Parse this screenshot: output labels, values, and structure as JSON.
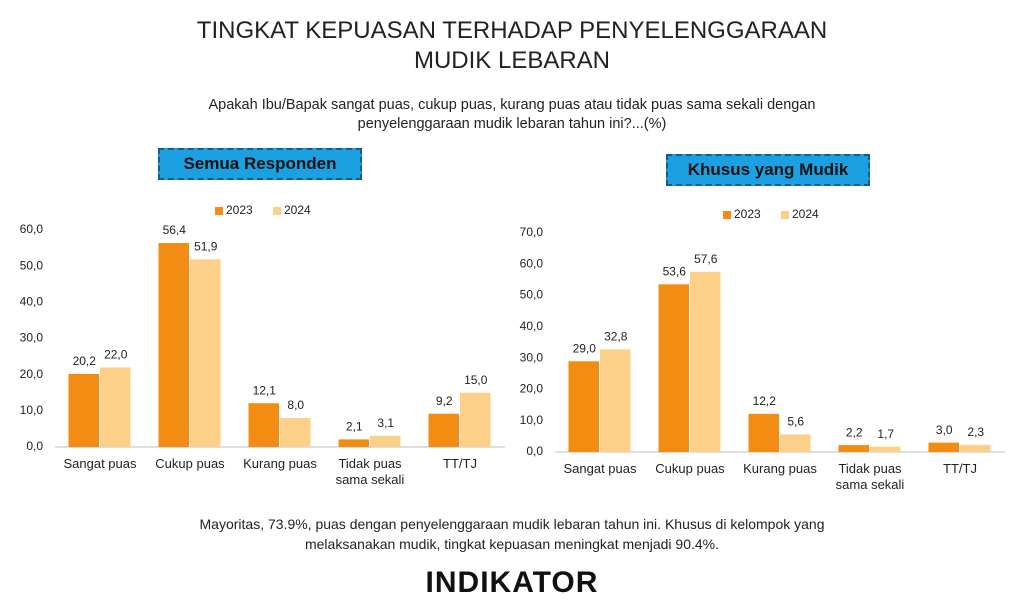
{
  "header": {
    "title": "TINGKAT KEPUASAN TERHADAP PENYELENGGARAAN MUDIK LEBARAN",
    "subtitle": "Apakah Ibu/Bapak sangat puas, cukup puas, kurang puas atau tidak puas sama sekali dengan penyelenggaraan mudik lebaran tahun ini?...(%)"
  },
  "chart_data": [
    {
      "type": "bar",
      "title": "Semua Responden",
      "categories": [
        "Sangat puas",
        "Cukup puas",
        "Kurang puas",
        "Tidak puas sama sekali",
        "TT/TJ"
      ],
      "series": [
        {
          "name": "2023",
          "color": "#f28c12",
          "values": [
            20.2,
            56.4,
            12.1,
            2.1,
            9.2
          ],
          "value_labels": [
            "20,2",
            "56,4",
            "12,1",
            "2,1",
            "9,2"
          ]
        },
        {
          "name": "2024",
          "color": "#fdd089",
          "values": [
            22.0,
            51.9,
            8.0,
            3.1,
            15.0
          ],
          "value_labels": [
            "22,0",
            "51,9",
            "8,0",
            "3,1",
            "15,0"
          ]
        }
      ],
      "ylim": [
        0,
        60
      ],
      "yticks": [
        {
          "value": 0,
          "label": "0,0"
        },
        {
          "value": 10,
          "label": "10,0"
        },
        {
          "value": 20,
          "label": "20,0"
        },
        {
          "value": 30,
          "label": "30,0"
        },
        {
          "value": 40,
          "label": "40,0"
        },
        {
          "value": 50,
          "label": "50,0"
        },
        {
          "value": 60,
          "label": "60,0"
        }
      ],
      "legend": "top"
    },
    {
      "type": "bar",
      "title": "Khusus yang Mudik",
      "categories": [
        "Sangat puas",
        "Cukup puas",
        "Kurang puas",
        "Tidak puas sama sekali",
        "TT/TJ"
      ],
      "series": [
        {
          "name": "2023",
          "color": "#f28c12",
          "values": [
            29.0,
            53.6,
            12.2,
            2.2,
            3.0
          ],
          "value_labels": [
            "29,0",
            "53,6",
            "12,2",
            "2,2",
            "3,0"
          ]
        },
        {
          "name": "2024",
          "color": "#fdd089",
          "values": [
            32.8,
            57.6,
            5.6,
            1.7,
            2.3
          ],
          "value_labels": [
            "32,8",
            "57,6",
            "5,6",
            "1,7",
            "2,3"
          ]
        }
      ],
      "ylim": [
        0,
        70
      ],
      "yticks": [
        {
          "value": 0,
          "label": "0,0"
        },
        {
          "value": 10,
          "label": "10,0"
        },
        {
          "value": 20,
          "label": "20,0"
        },
        {
          "value": 30,
          "label": "30,0"
        },
        {
          "value": 40,
          "label": "40,0"
        },
        {
          "value": 50,
          "label": "50,0"
        },
        {
          "value": 60,
          "label": "60,0"
        },
        {
          "value": 70,
          "label": "70,0"
        }
      ],
      "legend": "top"
    }
  ],
  "footer": {
    "note": "Mayoritas, 73.9%, puas dengan penyelenggaraan mudik lebaran tahun ini. Khusus di kelompok yang melaksanakan mudik, tingkat kepuasan meningkat menjadi 90.4%.",
    "logo": "INDIKATOR"
  }
}
